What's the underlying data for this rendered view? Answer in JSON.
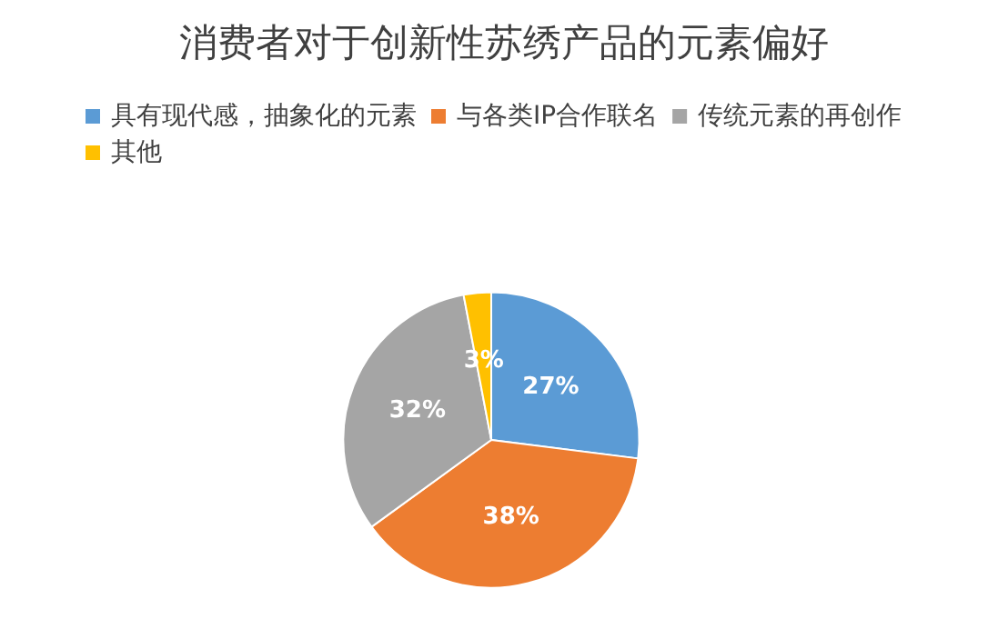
{
  "chart_data": {
    "type": "pie",
    "title": "消费者对于创新性苏绣产品的元素偏好",
    "categories": [
      "具有现代感，抽象化的元素",
      "与各类IP合作联名",
      "传统元素的再创作",
      "其他"
    ],
    "values": [
      27,
      38,
      32,
      3
    ],
    "colors": [
      "#5b9bd5",
      "#ed7d31",
      "#a5a5a5",
      "#ffc000"
    ],
    "value_labels": [
      "27%",
      "38%",
      "32%",
      "3%"
    ],
    "legend": "top"
  }
}
